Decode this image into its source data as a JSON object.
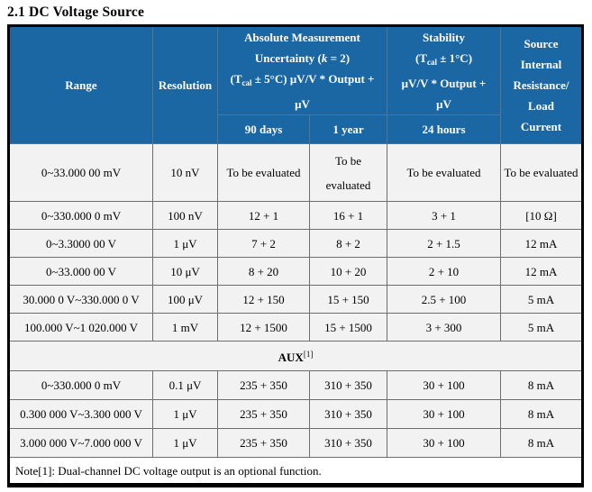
{
  "page": {
    "title": "2.1 DC Voltage Source"
  },
  "colors": {
    "header_bg": "#1b67a4",
    "header_text": "#ffffff",
    "cell_bg": "#f2f2f2",
    "note_bg": "#ffffff",
    "grid_line": "#6e6e6e",
    "outer_border": "#000000"
  },
  "table": {
    "header": {
      "range": "Range",
      "resolution": "Resolution",
      "absolute": {
        "line1": "Absolute Measurement",
        "line2_pre": "Uncertainty (",
        "line2_k": "k",
        "line2_post": " = 2)",
        "line3_pre": "(T",
        "line3_sub": "cal",
        "line3_post": " ± 5°C) μV/V * Output +",
        "line4": "μV",
        "col_90days": "90 days",
        "col_1year": "1 year"
      },
      "stability": {
        "line1": "Stability",
        "line2_pre": "(T",
        "line2_sub": "cal",
        "line2_post": " ± 1°C)",
        "line3": "μV/V * Output +",
        "line4": "μV",
        "col_24hours": "24 hours"
      },
      "source": {
        "lines": [
          "Source",
          "Internal",
          "Resistance/",
          "Load",
          "Current"
        ]
      }
    },
    "main_rows": [
      {
        "cells": [
          "0~33.000 00 mV",
          "10 nV",
          "To be evaluated",
          "To be evaluated",
          "To be evaluated",
          "To be evaluated"
        ]
      },
      {
        "cells": [
          "0~330.000 0 mV",
          "100 nV",
          "12 + 1",
          "16 + 1",
          "3 + 1",
          "[10 Ω]"
        ]
      },
      {
        "cells": [
          "0~3.3000 00 V",
          "1 μV",
          "7 + 2",
          "8 + 2",
          "2 + 1.5",
          "12 mA"
        ]
      },
      {
        "cells": [
          "0~33.000 00 V",
          "10 μV",
          "8 + 20",
          "10 + 20",
          "2 + 10",
          "12 mA"
        ]
      },
      {
        "cells": [
          "30.000 0 V~330.000 0 V",
          "100 μV",
          "12 + 150",
          "15 + 150",
          "2.5 + 100",
          "5 mA"
        ]
      },
      {
        "cells": [
          "100.000 V~1 020.000 V",
          "1 mV",
          "12 + 1500",
          "15 + 1500",
          "3 + 300",
          "5 mA"
        ]
      }
    ],
    "aux": {
      "label": "AUX",
      "sup": "[1]"
    },
    "aux_rows": [
      {
        "cells": [
          "0~330.000 0 mV",
          "0.1 μV",
          "235 + 350",
          "310 + 350",
          "30 + 100",
          "8 mA"
        ]
      },
      {
        "cells": [
          "0.300 000 V~3.300 000 V",
          "1 μV",
          "235 + 350",
          "310 + 350",
          "30 + 100",
          "8 mA"
        ]
      },
      {
        "cells": [
          "3.000 000 V~7.000 000 V",
          "1 μV",
          "235 + 350",
          "310 + 350",
          "30 + 100",
          "8 mA"
        ]
      }
    ],
    "note": "Note[1]: Dual-channel DC voltage output is an optional function."
  }
}
